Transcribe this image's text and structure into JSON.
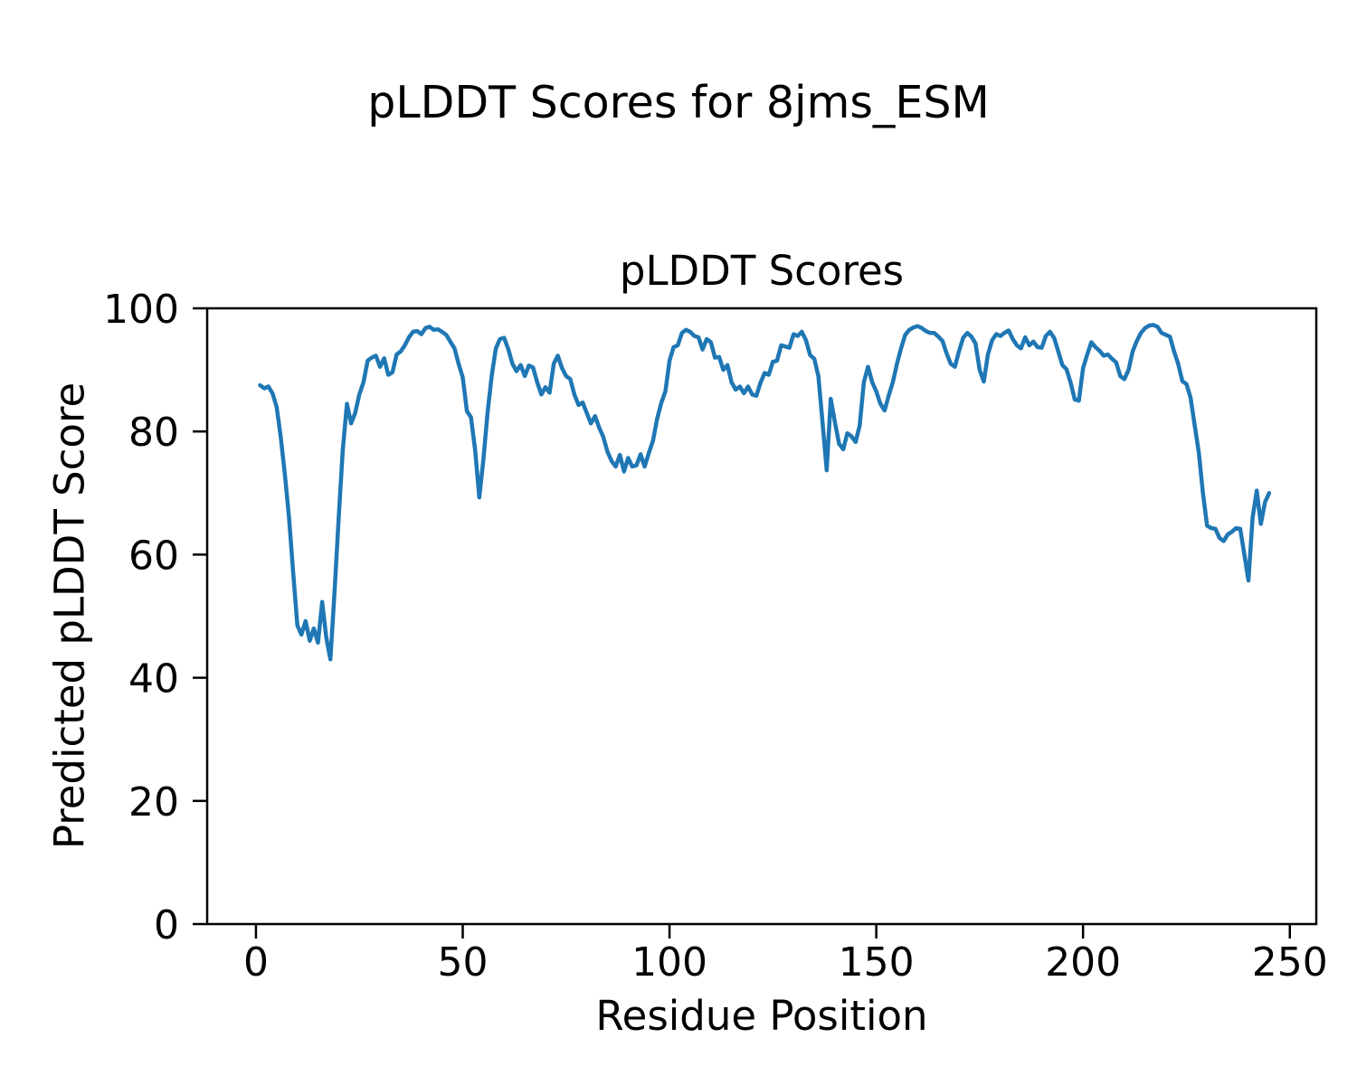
{
  "figure": {
    "suptitle": "pLDDT Scores for 8jms_ESM",
    "background_color": "#ffffff",
    "text_color": "#000000"
  },
  "chart_data": {
    "type": "line",
    "title": "pLDDT Scores",
    "xlabel": "Residue Position",
    "ylabel": "Predicted pLDDT Score",
    "xlim": [
      -11.8,
      256.4
    ],
    "ylim": [
      0,
      100
    ],
    "xticks": [
      0,
      50,
      100,
      150,
      200,
      250
    ],
    "yticks": [
      0,
      20,
      40,
      60,
      80,
      100
    ],
    "grid": false,
    "legend": false,
    "line_color": "#1f77b4",
    "line_width": 4.5,
    "spine_color": "#000000",
    "series": [
      {
        "name": "pLDDT",
        "x_start": 1,
        "values": [
          87.5,
          87.0,
          87.3,
          86.2,
          84.0,
          79.0,
          73.0,
          66.0,
          57.0,
          48.5,
          47.0,
          49.2,
          46.0,
          48.0,
          45.7,
          52.3,
          46.5,
          43.0,
          54.0,
          66.0,
          77.0,
          84.5,
          81.3,
          83.0,
          86.0,
          88.0,
          91.5,
          92.0,
          92.3,
          90.5,
          91.9,
          89.2,
          89.6,
          92.5,
          93.0,
          94.0,
          95.3,
          96.2,
          96.3,
          95.8,
          96.8,
          97.0,
          96.5,
          96.6,
          96.2,
          95.7,
          94.6,
          93.5,
          91.0,
          88.8,
          83.3,
          82.3,
          77.0,
          69.3,
          75.5,
          83.0,
          89.0,
          93.5,
          95.0,
          95.2,
          93.4,
          91.0,
          89.8,
          90.8,
          89.0,
          90.7,
          90.4,
          88.0,
          86.0,
          87.2,
          86.3,
          91.0,
          92.3,
          90.3,
          89.0,
          88.5,
          86.0,
          84.3,
          84.7,
          83.0,
          81.3,
          82.5,
          80.6,
          79.1,
          76.7,
          75.2,
          74.3,
          76.2,
          73.5,
          75.7,
          74.3,
          74.5,
          76.3,
          74.3,
          76.5,
          78.5,
          82.0,
          84.6,
          86.5,
          91.5,
          93.7,
          94.0,
          96.0,
          96.5,
          96.2,
          95.5,
          95.3,
          93.3,
          95.0,
          94.5,
          92.0,
          92.1,
          90.0,
          90.8,
          88.0,
          86.8,
          87.3,
          86.2,
          87.3,
          86.0,
          85.8,
          87.9,
          89.5,
          89.2,
          91.3,
          91.5,
          94.0,
          93.8,
          93.6,
          95.8,
          95.5,
          96.2,
          94.8,
          92.4,
          91.8,
          89.0,
          81.5,
          73.7,
          85.3,
          81.5,
          78.0,
          77.1,
          79.7,
          79.2,
          78.3,
          81.0,
          88.0,
          90.5,
          88.0,
          86.5,
          84.5,
          83.4,
          85.8,
          88.0,
          91.0,
          93.5,
          95.7,
          96.5,
          96.9,
          97.1,
          96.8,
          96.3,
          96.0,
          96.0,
          95.4,
          94.7,
          92.7,
          91.0,
          90.5,
          93.0,
          95.2,
          96.0,
          95.4,
          94.3,
          90.0,
          88.1,
          92.5,
          94.8,
          95.8,
          95.5,
          96.0,
          96.4,
          95.0,
          94.0,
          93.5,
          95.3,
          94.0,
          94.6,
          93.7,
          93.6,
          95.5,
          96.2,
          95.2,
          93.0,
          90.8,
          90.1,
          87.9,
          85.2,
          85.0,
          90.3,
          92.5,
          94.5,
          93.7,
          93.1,
          92.3,
          92.5,
          91.8,
          91.2,
          89.0,
          88.5,
          90.0,
          93.0,
          94.7,
          96.0,
          96.8,
          97.2,
          97.3,
          97.0,
          96.0,
          95.7,
          95.4,
          93.0,
          91.0,
          88.2,
          87.7,
          85.5,
          81.0,
          76.5,
          70.0,
          64.7,
          64.3,
          64.2,
          62.7,
          62.2,
          63.3,
          63.7,
          64.3,
          64.2,
          60.0,
          55.8,
          66.0,
          70.4,
          65.0,
          68.5,
          70.0
        ]
      }
    ]
  }
}
